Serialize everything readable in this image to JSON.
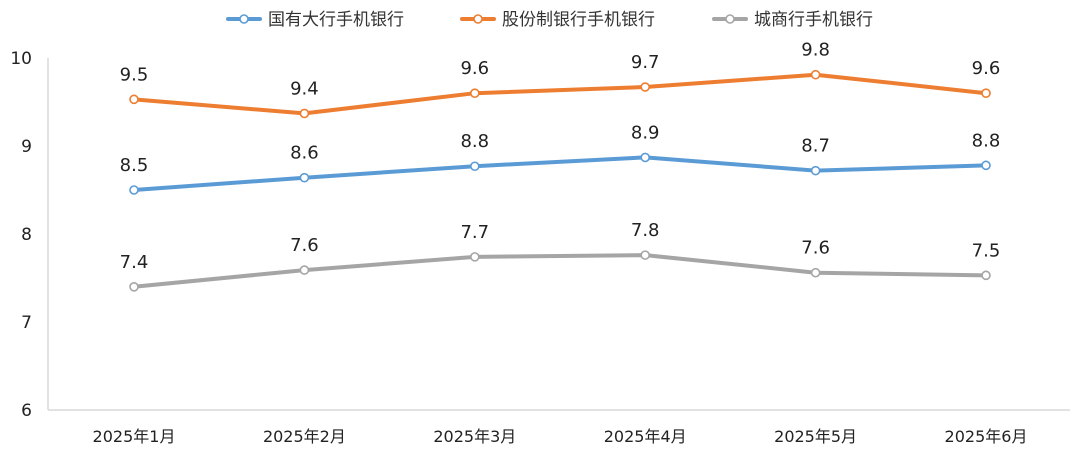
{
  "chart_data": {
    "type": "line",
    "title": "",
    "xlabel": "",
    "ylabel": "",
    "categories": [
      "2025年1月",
      "2025年2月",
      "2025年3月",
      "2025年4月",
      "2025年5月",
      "2025年6月"
    ],
    "ylim": [
      6,
      10
    ],
    "yticks": [
      6,
      7,
      8,
      9,
      10
    ],
    "grid": false,
    "legend_position": "top",
    "series": [
      {
        "name": "国有大行手机银行",
        "color": "#5b9bd5",
        "values": [
          8.5,
          8.64,
          8.77,
          8.87,
          8.72,
          8.78
        ],
        "labels": [
          "8.5",
          "8.6",
          "8.8",
          "8.9",
          "8.7",
          "8.8"
        ]
      },
      {
        "name": "股份制银行手机银行",
        "color": "#ed7d31",
        "values": [
          9.53,
          9.37,
          9.6,
          9.67,
          9.81,
          9.6
        ],
        "labels": [
          "9.5",
          "9.4",
          "9.6",
          "9.7",
          "9.8",
          "9.6"
        ]
      },
      {
        "name": "城商行手机银行",
        "color": "#a5a5a5",
        "values": [
          7.4,
          7.59,
          7.74,
          7.76,
          7.56,
          7.53
        ],
        "labels": [
          "7.4",
          "7.6",
          "7.7",
          "7.8",
          "7.6",
          "7.5"
        ]
      }
    ]
  }
}
